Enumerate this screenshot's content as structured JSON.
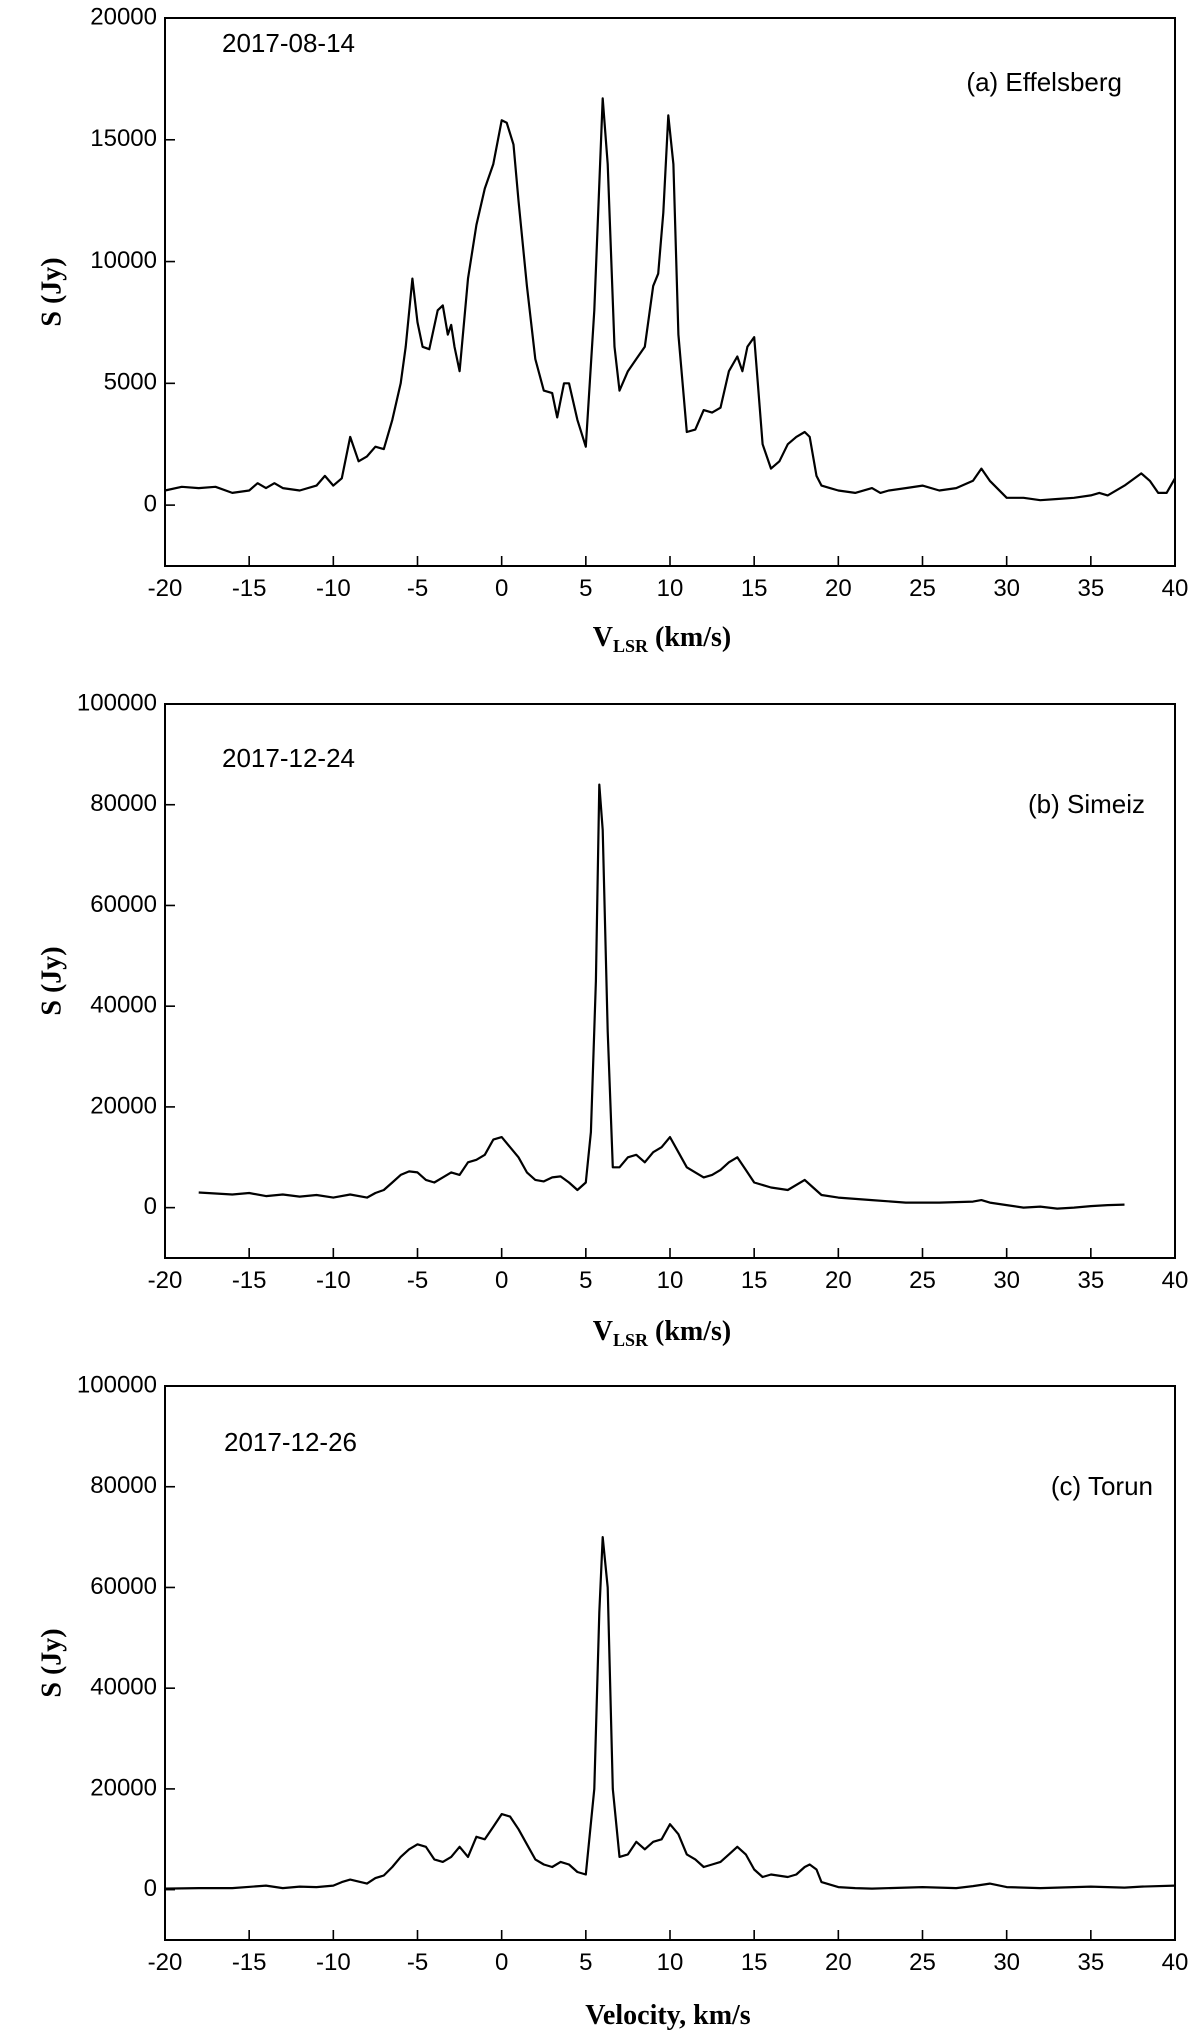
{
  "chart_data": [
    {
      "type": "line",
      "annotations": [
        "2017-08-14",
        "(a) Effelsberg"
      ],
      "xlabel": "V",
      "xlabel_sub": "LSR",
      "xlabel_unit": " (km/s)",
      "ylabel": "S (Jy)",
      "xlim": [
        -20,
        40
      ],
      "ylim": [
        -2500,
        20000
      ],
      "xticks": [
        -20,
        -15,
        -10,
        -5,
        0,
        5,
        10,
        15,
        20,
        25,
        30,
        35,
        40
      ],
      "yticks": [
        0,
        5000,
        10000,
        15000,
        20000
      ],
      "series": [
        {
          "x": [
            -20,
            -19,
            -18,
            -17,
            -16,
            -15,
            -14.5,
            -14,
            -13.5,
            -13,
            -12,
            -11,
            -10.5,
            -10,
            -9.5,
            -9,
            -8.5,
            -8,
            -7.5,
            -7,
            -6.5,
            -6,
            -5.7,
            -5.3,
            -5,
            -4.7,
            -4.3,
            -3.8,
            -3.5,
            -3.2,
            -3,
            -2.8,
            -2.5,
            -2,
            -1.5,
            -1,
            -0.5,
            0,
            0.3,
            0.7,
            1,
            1.5,
            2,
            2.5,
            3,
            3.3,
            3.7,
            4,
            4.5,
            5,
            5.5,
            6,
            6.3,
            6.7,
            7,
            7.5,
            8,
            8.5,
            9,
            9.3,
            9.6,
            9.9,
            10.2,
            10.5,
            11,
            11.5,
            12,
            12.5,
            13,
            13.5,
            14,
            14.3,
            14.6,
            15,
            15.5,
            16,
            16.5,
            17,
            17.5,
            18,
            18.3,
            18.7,
            19,
            19.5,
            20,
            21,
            22,
            22.5,
            23,
            24,
            25,
            26,
            27,
            28,
            28.5,
            29,
            30,
            31,
            32,
            33,
            34,
            35,
            35.5,
            36,
            37,
            38,
            38.5,
            39,
            39.5,
            40
          ],
          "values": [
            600,
            750,
            700,
            750,
            500,
            600,
            900,
            700,
            900,
            700,
            600,
            800,
            1200,
            800,
            1100,
            2800,
            1800,
            2000,
            2400,
            2300,
            3500,
            5000,
            6500,
            9300,
            7500,
            6500,
            6400,
            8000,
            8200,
            7000,
            7400,
            6500,
            5500,
            9300,
            11500,
            13000,
            14000,
            15800,
            15700,
            14800,
            12500,
            9000,
            6000,
            4700,
            4600,
            3600,
            5000,
            5000,
            3500,
            2400,
            8000,
            16700,
            14000,
            6500,
            4700,
            5500,
            6000,
            6500,
            9000,
            9500,
            12000,
            16000,
            14000,
            7000,
            3000,
            3100,
            3900,
            3800,
            4000,
            5500,
            6100,
            5500,
            6500,
            6900,
            2500,
            1500,
            1800,
            2500,
            2800,
            3000,
            2800,
            1200,
            800,
            700,
            600,
            500,
            700,
            500,
            600,
            700,
            800,
            600,
            700,
            1000,
            1500,
            1000,
            300,
            300,
            200,
            250,
            300,
            400,
            500,
            400,
            800,
            1300,
            1000,
            500,
            500,
            1100
          ]
        }
      ]
    },
    {
      "type": "line",
      "annotations": [
        "2017-12-24",
        "(b) Simeiz"
      ],
      "xlabel": "V",
      "xlabel_sub": "LSR",
      "xlabel_unit": " (km/s)",
      "ylabel": "S (Jy)",
      "xlim": [
        -20,
        40
      ],
      "ylim": [
        -10000,
        100000
      ],
      "xticks": [
        -20,
        -15,
        -10,
        -5,
        0,
        5,
        10,
        15,
        20,
        25,
        30,
        35,
        40
      ],
      "yticks": [
        0,
        20000,
        40000,
        60000,
        80000,
        100000
      ],
      "series": [
        {
          "x": [
            -18,
            -17,
            -16,
            -15,
            -14,
            -13,
            -12,
            -11,
            -10,
            -9,
            -8,
            -7.5,
            -7,
            -6.5,
            -6,
            -5.5,
            -5,
            -4.5,
            -4,
            -3.5,
            -3,
            -2.5,
            -2,
            -1.5,
            -1,
            -0.5,
            0,
            0.5,
            1,
            1.5,
            2,
            2.5,
            3,
            3.5,
            4,
            4.5,
            5,
            5.3,
            5.6,
            5.8,
            6,
            6.3,
            6.6,
            7,
            7.5,
            8,
            8.5,
            9,
            9.5,
            10,
            10.5,
            11,
            11.5,
            12,
            12.5,
            13,
            13.5,
            14,
            14.5,
            15,
            16,
            17,
            18,
            18.5,
            19,
            20,
            22,
            24,
            26,
            28,
            28.5,
            29,
            30,
            31,
            32,
            33,
            34,
            35,
            36,
            37
          ],
          "values": [
            3000,
            2800,
            2600,
            2900,
            2300,
            2600,
            2200,
            2500,
            2000,
            2600,
            2000,
            2900,
            3500,
            5000,
            6500,
            7200,
            7000,
            5500,
            5000,
            6000,
            7000,
            6500,
            9000,
            9500,
            10500,
            13500,
            14000,
            12000,
            10000,
            7000,
            5500,
            5200,
            6000,
            6200,
            5000,
            3500,
            5000,
            15000,
            45000,
            84000,
            75000,
            35000,
            8000,
            8000,
            10000,
            10500,
            9000,
            11000,
            12000,
            14000,
            11000,
            8000,
            7000,
            6000,
            6500,
            7500,
            9000,
            10000,
            7500,
            5000,
            4000,
            3500,
            5500,
            4000,
            2500,
            2000,
            1500,
            1000,
            1000,
            1200,
            1500,
            1000,
            500,
            0,
            200,
            -200,
            0,
            300,
            500,
            600
          ]
        }
      ]
    },
    {
      "type": "line",
      "annotations": [
        "2017-12-26",
        "(c) Torun"
      ],
      "xlabel": "Velocity, km/s",
      "xlabel_sub": "",
      "xlabel_unit": "",
      "ylabel": "S (Jy)",
      "xlim": [
        -20,
        40
      ],
      "ylim": [
        -10000,
        100000
      ],
      "xticks": [
        -20,
        -15,
        -10,
        -5,
        0,
        5,
        10,
        15,
        20,
        25,
        30,
        35,
        40
      ],
      "yticks": [
        0,
        20000,
        40000,
        60000,
        80000,
        100000
      ],
      "series": [
        {
          "x": [
            -20,
            -18,
            -16,
            -14,
            -13,
            -12,
            -11,
            -10,
            -9.5,
            -9,
            -8.5,
            -8,
            -7.5,
            -7,
            -6.5,
            -6,
            -5.5,
            -5,
            -4.5,
            -4,
            -3.5,
            -3,
            -2.5,
            -2,
            -1.5,
            -1,
            -0.5,
            0,
            0.5,
            1,
            1.5,
            2,
            2.5,
            3,
            3.5,
            4,
            4.5,
            5,
            5.5,
            5.8,
            6,
            6.3,
            6.6,
            7,
            7.5,
            8,
            8.5,
            9,
            9.5,
            10,
            10.5,
            11,
            11.5,
            12,
            12.5,
            13,
            13.5,
            14,
            14.5,
            15,
            15.5,
            16,
            17,
            17.5,
            18,
            18.3,
            18.7,
            19,
            20,
            21,
            22,
            25,
            27,
            28,
            29,
            30,
            32,
            35,
            37,
            38,
            40
          ],
          "values": [
            200,
            300,
            300,
            800,
            300,
            600,
            500,
            800,
            1500,
            2000,
            1600,
            1200,
            2300,
            2800,
            4500,
            6500,
            8000,
            9000,
            8500,
            6000,
            5500,
            6500,
            8500,
            6500,
            10500,
            10000,
            12500,
            15000,
            14500,
            12000,
            9000,
            6000,
            5000,
            4500,
            5500,
            5000,
            3500,
            3000,
            20000,
            55000,
            70000,
            60000,
            20000,
            6500,
            7000,
            9500,
            8000,
            9500,
            10000,
            13000,
            11000,
            7000,
            6000,
            4500,
            5000,
            5500,
            7000,
            8500,
            7000,
            4000,
            2500,
            3000,
            2500,
            3000,
            4500,
            5000,
            4000,
            1500,
            500,
            300,
            200,
            500,
            300,
            700,
            1200,
            500,
            300,
            600,
            400,
            600,
            800
          ]
        }
      ]
    }
  ]
}
